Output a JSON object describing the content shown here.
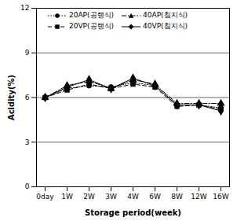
{
  "chart_data": {
    "type": "line",
    "x_label": "Storage period(week)",
    "y_label": "Acidity(%)",
    "categories": [
      "0day",
      "1W",
      "2W",
      "3W",
      "4W",
      "6W",
      "8W",
      "12W",
      "16W"
    ],
    "series": [
      {
        "name": "20AP(공랭식)",
        "color": "#000000",
        "marker": "circle",
        "line_style": "dotted",
        "values": [
          6.0,
          6.6,
          6.8,
          6.7,
          7.0,
          6.8,
          5.5,
          5.5,
          5.3
        ]
      },
      {
        "name": "40AP(침지식)",
        "color": "#000000",
        "marker": "triangle",
        "line_style": "dashdot",
        "values": [
          6.0,
          6.8,
          7.1,
          6.6,
          7.2,
          6.9,
          5.6,
          5.6,
          5.6
        ]
      },
      {
        "name": "20VP(공랭식)",
        "color": "#000000",
        "marker": "square",
        "line_style": "dashed",
        "values": [
          6.0,
          6.5,
          6.9,
          6.6,
          6.9,
          6.7,
          5.4,
          5.5,
          5.2
        ]
      },
      {
        "name": "40VP(침지식)",
        "color": "#000000",
        "marker": "diamond",
        "line_style": "solid",
        "values": [
          6.0,
          6.7,
          7.2,
          6.6,
          7.3,
          6.8,
          5.5,
          5.5,
          5.1
        ]
      }
    ],
    "ylim": [
      0,
      12
    ],
    "yticks": [
      0,
      3,
      6,
      9,
      12
    ],
    "grid": true
  }
}
